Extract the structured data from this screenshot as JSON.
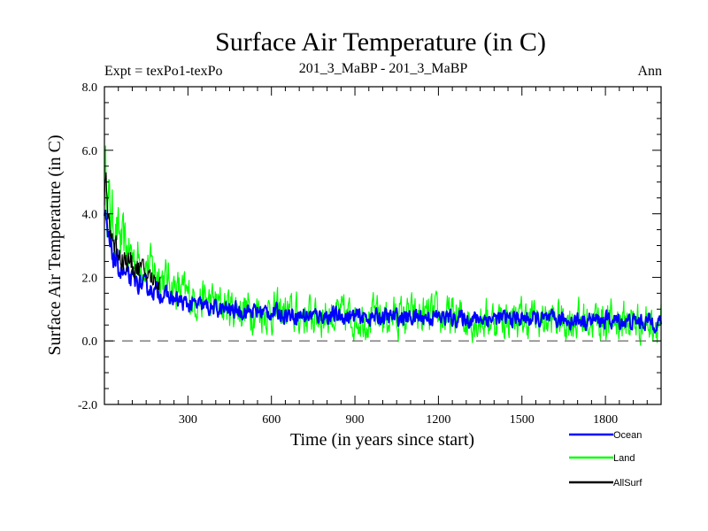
{
  "header": {
    "title": "Surface Air Temperature (in C)",
    "expt": "Expt = texPo1-texPo",
    "subtitle": "201_3_MaBP - 201_3_MaBP",
    "period": "Ann"
  },
  "chart_data": {
    "type": "line",
    "title": "Surface Air Temperature (in C)",
    "xlabel": "Time (in years since start)",
    "ylabel": "Surface Air Temperature (in C)",
    "xlim": [
      0,
      2000
    ],
    "ylim": [
      -2.0,
      8.0
    ],
    "xticks": [
      300,
      600,
      900,
      1200,
      1500,
      1800
    ],
    "xtick_labels": [
      "300",
      "600",
      "900",
      "1200",
      "1500",
      "1800"
    ],
    "yticks": [
      -2.0,
      0.0,
      2.0,
      4.0,
      6.0,
      8.0
    ],
    "ytick_labels": [
      "-2.0",
      "0.0",
      "2.0",
      "4.0",
      "6.0",
      "8.0"
    ],
    "reference_line": 0.0,
    "legend_position": "bottom-right, outside plot",
    "series": [
      {
        "name": "Land",
        "color": "#00ff00",
        "x": [
          0,
          10,
          20,
          40,
          60,
          80,
          100,
          150,
          200,
          250,
          300,
          350,
          400,
          500,
          600,
          700,
          800,
          900,
          1000,
          1100,
          1200,
          1300,
          1400,
          1500,
          1600,
          1700,
          1800,
          1900,
          2000
        ],
        "y": [
          5.5,
          4.6,
          4.1,
          3.5,
          3.1,
          2.9,
          2.7,
          2.4,
          2.1,
          1.7,
          1.4,
          1.3,
          1.15,
          1.0,
          0.9,
          0.8,
          0.8,
          0.75,
          0.75,
          0.75,
          0.75,
          0.7,
          0.7,
          0.7,
          0.65,
          0.65,
          0.65,
          0.6,
          0.6
        ]
      },
      {
        "name": "Ocean",
        "color": "#0000ff",
        "x": [
          0,
          10,
          20,
          40,
          60,
          80,
          100,
          150,
          200,
          250,
          300,
          350,
          400,
          500,
          600,
          700,
          800,
          900,
          1000,
          1100,
          1200,
          1300,
          1400,
          1500,
          1600,
          1700,
          1800,
          1900,
          2000
        ],
        "y": [
          3.9,
          3.3,
          2.9,
          2.5,
          2.2,
          2.0,
          1.9,
          1.7,
          1.5,
          1.3,
          1.15,
          1.1,
          1.0,
          0.95,
          0.9,
          0.8,
          0.8,
          0.75,
          0.75,
          0.75,
          0.75,
          0.7,
          0.7,
          0.7,
          0.65,
          0.65,
          0.65,
          0.6,
          0.6
        ]
      },
      {
        "name": "AllSurf",
        "color": "#000000",
        "x": [
          0,
          5,
          10,
          20,
          30,
          40,
          60,
          80,
          100,
          120,
          150,
          180,
          200
        ],
        "y": [
          4.6,
          4.9,
          4.2,
          3.6,
          3.2,
          3.0,
          2.7,
          2.5,
          2.4,
          2.3,
          2.1,
          1.9,
          1.8
        ]
      }
    ]
  }
}
